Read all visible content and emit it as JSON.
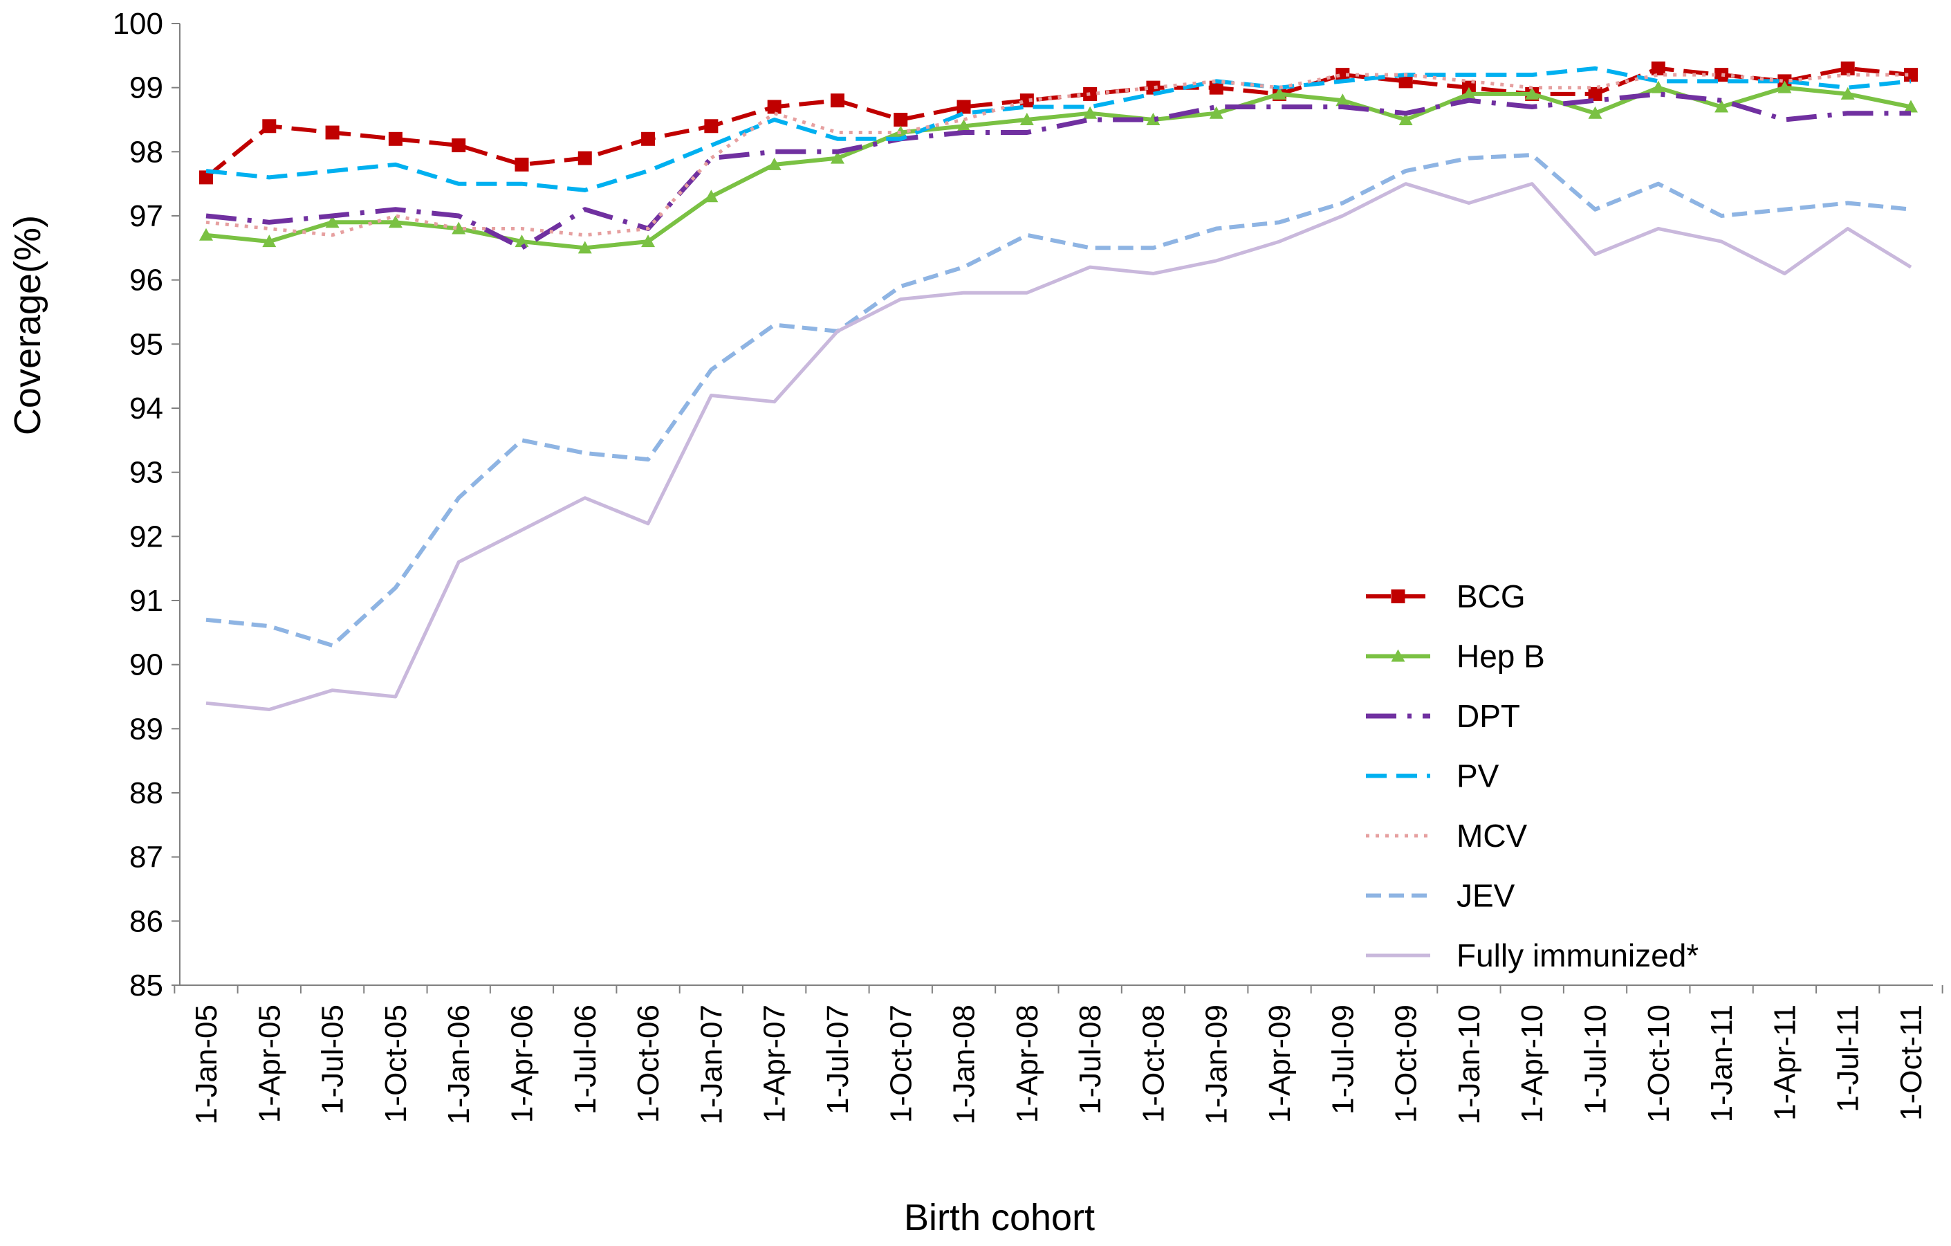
{
  "chart_data": {
    "type": "line",
    "title": "",
    "xlabel": "Birth cohort",
    "ylabel": "Coverage(%)",
    "ylim": [
      85,
      100
    ],
    "yticks": [
      85,
      86,
      87,
      88,
      89,
      90,
      91,
      92,
      93,
      94,
      95,
      96,
      97,
      98,
      99,
      100
    ],
    "grid": false,
    "legend_position": "lower-right",
    "categories": [
      "1-Jan-05",
      "1-Apr-05",
      "1-Jul-05",
      "1-Oct-05",
      "1-Jan-06",
      "1-Apr-06",
      "1-Jul-06",
      "1-Oct-06",
      "1-Jan-07",
      "1-Apr-07",
      "1-Jul-07",
      "1-Oct-07",
      "1-Jan-08",
      "1-Apr-08",
      "1-Jul-08",
      "1-Oct-08",
      "1-Jan-09",
      "1-Apr-09",
      "1-Jul-09",
      "1-Oct-09",
      "1-Jan-10",
      "1-Apr-10",
      "1-Jul-10",
      "1-Oct-10",
      "1-Jan-11",
      "1-Apr-11",
      "1-Jul-11",
      "1-Oct-11"
    ],
    "series": [
      {
        "name": "BCG",
        "color": "#C00000",
        "dash": "dash-square",
        "values": [
          97.6,
          98.4,
          98.3,
          98.2,
          98.1,
          97.8,
          97.9,
          98.2,
          98.4,
          98.7,
          98.8,
          98.5,
          98.7,
          98.8,
          98.9,
          99.0,
          99.0,
          98.9,
          99.2,
          99.1,
          99.0,
          98.9,
          98.9,
          99.3,
          99.2,
          99.1,
          99.3,
          99.2
        ]
      },
      {
        "name": "Hep B",
        "color": "#7AC143",
        "dash": "solid-triangle",
        "values": [
          96.7,
          96.6,
          96.9,
          96.9,
          96.8,
          96.6,
          96.5,
          96.6,
          97.3,
          97.8,
          97.9,
          98.3,
          98.4,
          98.5,
          98.6,
          98.5,
          98.6,
          98.9,
          98.8,
          98.5,
          98.9,
          98.9,
          98.6,
          99.0,
          98.7,
          99.0,
          98.9,
          98.7
        ]
      },
      {
        "name": "DPT",
        "color": "#7030A0",
        "dash": "dashdot",
        "values": [
          97.0,
          96.9,
          97.0,
          97.1,
          97.0,
          96.5,
          97.1,
          96.8,
          97.9,
          98.0,
          98.0,
          98.2,
          98.3,
          98.3,
          98.5,
          98.5,
          98.7,
          98.7,
          98.7,
          98.6,
          98.8,
          98.7,
          98.8,
          98.9,
          98.8,
          98.5,
          98.6,
          98.6
        ]
      },
      {
        "name": "PV",
        "color": "#00B0F0",
        "dash": "dash",
        "values": [
          97.7,
          97.6,
          97.7,
          97.8,
          97.5,
          97.5,
          97.4,
          97.7,
          98.1,
          98.5,
          98.2,
          98.2,
          98.6,
          98.7,
          98.7,
          98.9,
          99.1,
          99.0,
          99.1,
          99.2,
          99.2,
          99.2,
          99.3,
          99.1,
          99.1,
          99.1,
          99.0,
          99.1
        ]
      },
      {
        "name": "MCV",
        "color": "#E6A0A0",
        "dash": "dot",
        "values": [
          96.9,
          96.8,
          96.7,
          97.0,
          96.8,
          96.8,
          96.7,
          96.8,
          97.9,
          98.6,
          98.3,
          98.3,
          98.5,
          98.8,
          98.9,
          99.0,
          99.1,
          99.0,
          99.2,
          99.2,
          99.1,
          99.0,
          99.0,
          99.2,
          99.2,
          99.1,
          99.2,
          99.2
        ]
      },
      {
        "name": "JEV",
        "color": "#8EB4E3",
        "dash": "longdash",
        "values": [
          90.7,
          90.6,
          90.3,
          91.2,
          92.6,
          93.5,
          93.3,
          93.2,
          94.6,
          95.3,
          95.2,
          95.9,
          96.2,
          96.7,
          96.5,
          96.5,
          96.8,
          96.9,
          97.2,
          97.7,
          97.9,
          97.95,
          97.1,
          97.5,
          97.0,
          97.1,
          97.2,
          97.1
        ]
      },
      {
        "name": "Fully immunized*",
        "color": "#C9B8DC",
        "dash": "solid",
        "values": [
          89.4,
          89.3,
          89.6,
          89.5,
          91.6,
          92.1,
          92.6,
          92.2,
          94.2,
          94.1,
          95.2,
          95.7,
          95.8,
          95.8,
          96.2,
          96.1,
          96.3,
          96.6,
          97.0,
          97.5,
          97.2,
          97.5,
          96.4,
          96.8,
          96.6,
          96.1,
          96.8,
          96.2
        ]
      }
    ]
  }
}
